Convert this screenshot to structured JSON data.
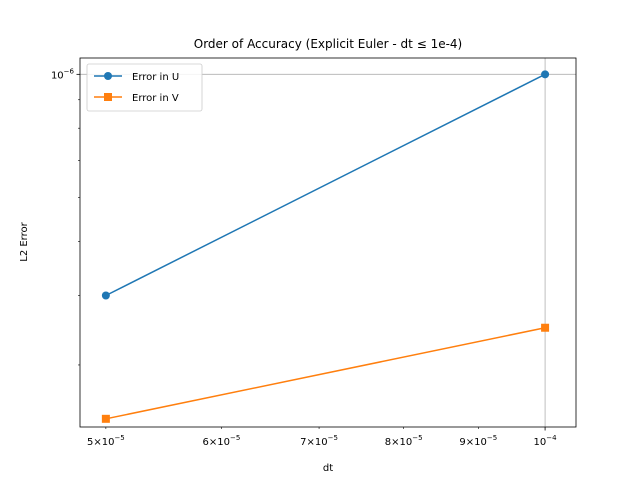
{
  "chart_data": {
    "type": "line",
    "title": "Order of Accuracy (Explicit Euler - dt ≤ 1e-4)",
    "xlabel": "dt",
    "ylabel": "L2 Error",
    "x_scale": "log",
    "y_scale": "log",
    "xlim": [
      4.8e-05,
      0.000105
    ],
    "ylim": [
      2.32e-07,
      1.07e-06
    ],
    "grid": "major",
    "legend_position": "top-left",
    "x_ticks": [
      {
        "value": 5e-05,
        "mantissa": "5",
        "exponent": "−5"
      },
      {
        "value": 6e-05,
        "mantissa": "6",
        "exponent": "−5"
      },
      {
        "value": 7e-05,
        "mantissa": "7",
        "exponent": "−5"
      },
      {
        "value": 8e-05,
        "mantissa": "8",
        "exponent": "−5"
      },
      {
        "value": 9e-05,
        "mantissa": "9",
        "exponent": "−5"
      },
      {
        "value": 0.0001,
        "mantissa": "",
        "exponent": "−4"
      }
    ],
    "y_ticks": [
      {
        "value": 1e-06,
        "mantissa": "",
        "exponent": "−6"
      }
    ],
    "series": [
      {
        "name": "Error in U",
        "color": "#1f77b4",
        "marker": "circle",
        "x": [
          5e-05,
          0.0001
        ],
        "y": [
          4e-07,
          1e-06
        ]
      },
      {
        "name": "Error in V",
        "color": "#ff7f0e",
        "marker": "square",
        "x": [
          5e-05,
          0.0001
        ],
        "y": [
          2.4e-07,
          3.5e-07
        ]
      }
    ]
  }
}
